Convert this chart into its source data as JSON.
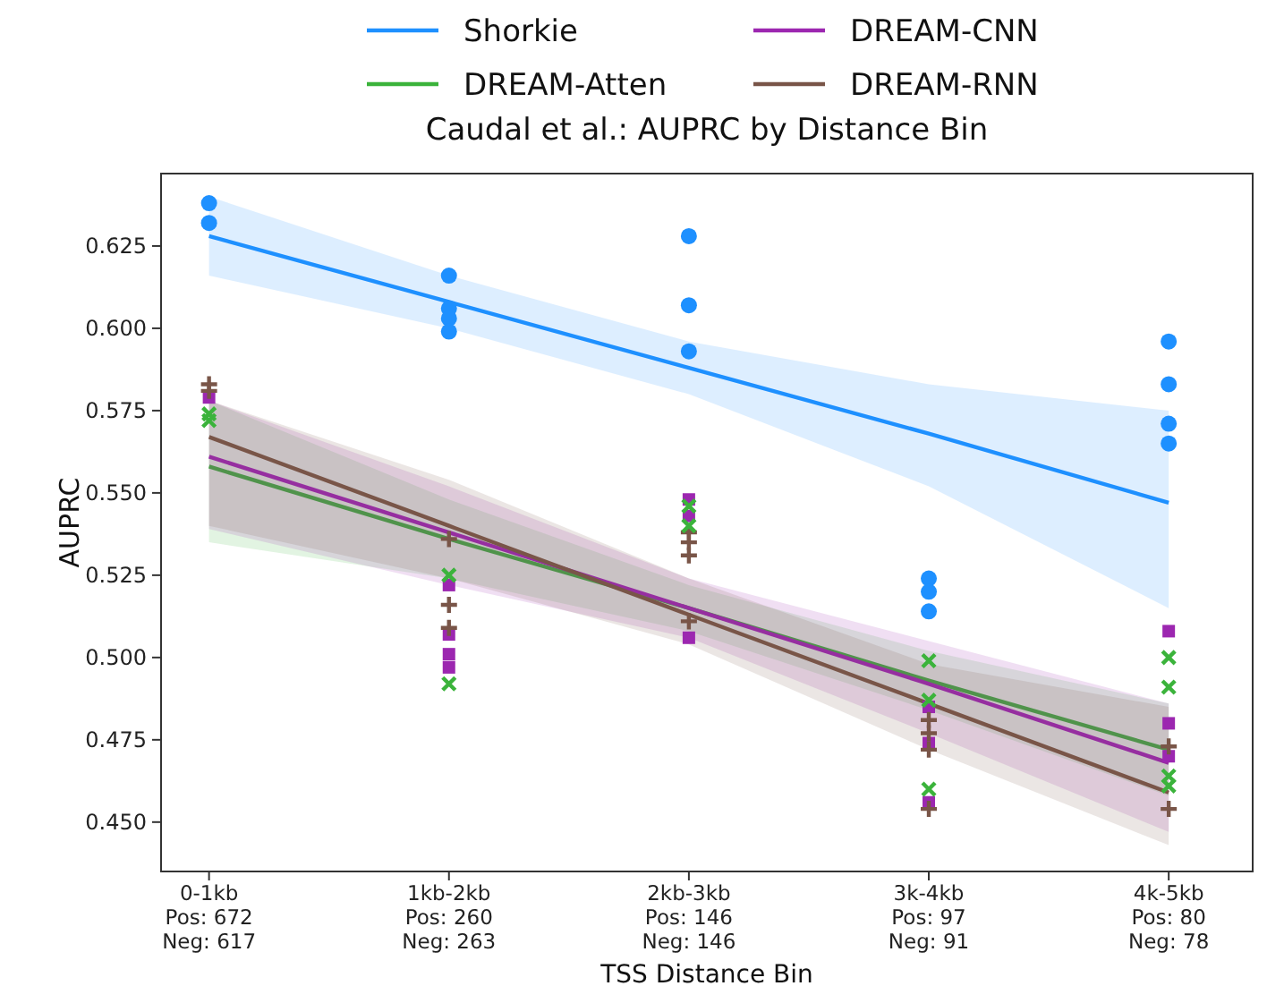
{
  "chart_data": {
    "type": "scatter",
    "title": "Caudal et al.: AUPRC by Distance Bin",
    "xlabel": "TSS Distance Bin",
    "ylabel": "AUPRC",
    "categories": [
      "0-1kb\nPos: 672\nNeg: 617",
      "1kb-2kb\nPos: 260\nNeg: 263",
      "2kb-3kb\nPos: 146\nNeg: 146",
      "3k-4kb\nPos: 97\nNeg: 91",
      "4k-5kb\nPos: 80\nNeg: 78"
    ],
    "ylim": [
      0.435,
      0.647
    ],
    "yticks": [
      {
        "value": 0.45,
        "label": "0.450"
      },
      {
        "value": 0.475,
        "label": "0.475"
      },
      {
        "value": 0.5,
        "label": "0.500"
      },
      {
        "value": 0.525,
        "label": "0.525"
      },
      {
        "value": 0.55,
        "label": "0.550"
      },
      {
        "value": 0.575,
        "label": "0.575"
      },
      {
        "value": 0.6,
        "label": "0.600"
      },
      {
        "value": 0.625,
        "label": "0.625"
      }
    ],
    "legend": "top",
    "grid": false,
    "series": [
      {
        "color": "#1e90ff",
        "marker": "circle",
        "x": [
          "0-1kb\nPos: 672\nNeg: 617",
          "0-1kb\nPos: 672\nNeg: 617",
          "1kb-2kb\nPos: 260\nNeg: 263",
          "1kb-2kb\nPos: 260\nNeg: 263",
          "1kb-2kb\nPos: 260\nNeg: 263",
          "1kb-2kb\nPos: 260\nNeg: 263",
          "2kb-3kb\nPos: 146\nNeg: 146",
          "2kb-3kb\nPos: 146\nNeg: 146",
          "2kb-3kb\nPos: 146\nNeg: 146",
          "3k-4kb\nPos: 97\nNeg: 91",
          "3k-4kb\nPos: 97\nNeg: 91",
          "3k-4kb\nPos: 97\nNeg: 91",
          "4k-5kb\nPos: 80\nNeg: 78",
          "4k-5kb\nPos: 80\nNeg: 78",
          "4k-5kb\nPos: 80\nNeg: 78",
          "4k-5kb\nPos: 80\nNeg: 78"
        ],
        "values": [
          0.638,
          0.632,
          0.616,
          0.606,
          0.603,
          0.599,
          0.628,
          0.607,
          0.593,
          0.524,
          0.52,
          0.514,
          0.596,
          0.583,
          0.571,
          0.565
        ]
      },
      {
        "color": "#3bb33b",
        "marker": "cross",
        "x": [
          "0-1kb\nPos: 672\nNeg: 617",
          "0-1kb\nPos: 672\nNeg: 617",
          "1kb-2kb\nPos: 260\nNeg: 263",
          "1kb-2kb\nPos: 260\nNeg: 263",
          "2kb-3kb\nPos: 146\nNeg: 146",
          "2kb-3kb\nPos: 146\nNeg: 146",
          "3k-4kb\nPos: 97\nNeg: 91",
          "3k-4kb\nPos: 97\nNeg: 91",
          "3k-4kb\nPos: 97\nNeg: 91",
          "4k-5kb\nPos: 80\nNeg: 78",
          "4k-5kb\nPos: 80\nNeg: 78",
          "4k-5kb\nPos: 80\nNeg: 78",
          "4k-5kb\nPos: 80\nNeg: 78"
        ],
        "values": [
          0.574,
          0.572,
          0.525,
          0.492,
          0.546,
          0.54,
          0.499,
          0.487,
          0.46,
          0.5,
          0.491,
          0.464,
          0.461
        ]
      },
      {
        "color": "#9c27b0",
        "marker": "square",
        "x": [
          "0-1kb\nPos: 672\nNeg: 617",
          "1kb-2kb\nPos: 260\nNeg: 263",
          "1kb-2kb\nPos: 260\nNeg: 263",
          "1kb-2kb\nPos: 260\nNeg: 263",
          "1kb-2kb\nPos: 260\nNeg: 263",
          "2kb-3kb\nPos: 146\nNeg: 146",
          "2kb-3kb\nPos: 146\nNeg: 146",
          "2kb-3kb\nPos: 146\nNeg: 146",
          "3k-4kb\nPos: 97\nNeg: 91",
          "3k-4kb\nPos: 97\nNeg: 91",
          "3k-4kb\nPos: 97\nNeg: 91",
          "4k-5kb\nPos: 80\nNeg: 78",
          "4k-5kb\nPos: 80\nNeg: 78",
          "4k-5kb\nPos: 80\nNeg: 78"
        ],
        "values": [
          0.579,
          0.522,
          0.507,
          0.501,
          0.497,
          0.548,
          0.543,
          0.506,
          0.485,
          0.474,
          0.456,
          0.508,
          0.48,
          0.47
        ]
      },
      {
        "color": "#795548",
        "marker": "plus",
        "x": [
          "0-1kb\nPos: 672\nNeg: 617",
          "0-1kb\nPos: 672\nNeg: 617",
          "1kb-2kb\nPos: 260\nNeg: 263",
          "1kb-2kb\nPos: 260\nNeg: 263",
          "1kb-2kb\nPos: 260\nNeg: 263",
          "2kb-3kb\nPos: 146\nNeg: 146",
          "2kb-3kb\nPos: 146\nNeg: 146",
          "2kb-3kb\nPos: 146\nNeg: 146",
          "2kb-3kb\nPos: 146\nNeg: 146",
          "3k-4kb\nPos: 97\nNeg: 91",
          "3k-4kb\nPos: 97\nNeg: 91",
          "3k-4kb\nPos: 97\nNeg: 91",
          "3k-4kb\nPos: 97\nNeg: 91",
          "4k-5kb\nPos: 80\nNeg: 78",
          "4k-5kb\nPos: 80\nNeg: 78"
        ],
        "values": [
          0.583,
          0.581,
          0.536,
          0.516,
          0.509,
          0.538,
          0.535,
          0.531,
          0.511,
          0.481,
          0.477,
          0.472,
          0.454,
          0.473,
          0.454
        ]
      },
      {
        "type": "line",
        "name": "Shorkie",
        "color": "#1e90ff",
        "marker": "none",
        "values": [
          0.628,
          0.608,
          0.588,
          0.568,
          0.547
        ],
        "lower": [
          0.616,
          0.6,
          0.58,
          0.552,
          0.515
        ],
        "upper": [
          0.64,
          0.616,
          0.596,
          0.583,
          0.575
        ]
      },
      {
        "type": "line",
        "name": "DREAM-Atten",
        "color": "#3bb33b",
        "marker": "none",
        "values": [
          0.558,
          0.536,
          0.515,
          0.493,
          0.472
        ],
        "lower": [
          0.535,
          0.524,
          0.508,
          0.484,
          0.458
        ],
        "upper": [
          0.578,
          0.548,
          0.522,
          0.502,
          0.486
        ]
      },
      {
        "type": "line",
        "name": "DREAM-CNN",
        "color": "#9c27b0",
        "marker": "none",
        "values": [
          0.561,
          0.538,
          0.515,
          0.492,
          0.468
        ],
        "lower": [
          0.539,
          0.522,
          0.506,
          0.477,
          0.447
        ],
        "upper": [
          0.578,
          0.552,
          0.524,
          0.505,
          0.486
        ]
      },
      {
        "type": "line",
        "name": "DREAM-RNN",
        "color": "#795548",
        "marker": "none",
        "values": [
          0.567,
          0.54,
          0.513,
          0.486,
          0.459
        ],
        "lower": [
          0.54,
          0.524,
          0.504,
          0.472,
          0.443
        ],
        "upper": [
          0.578,
          0.554,
          0.524,
          0.498,
          0.485
        ]
      }
    ]
  }
}
